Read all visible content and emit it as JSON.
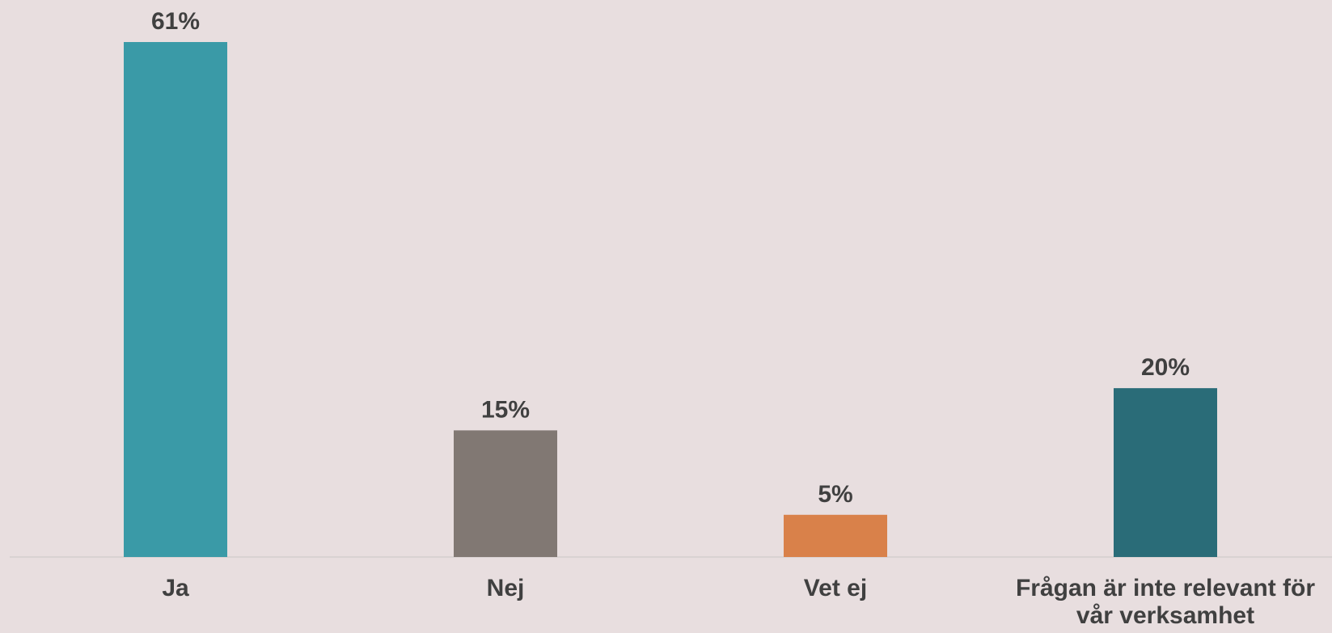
{
  "chart_data": {
    "type": "bar",
    "categories": [
      "Ja",
      "Nej",
      "Vet ej",
      "Frågan är inte relevant för vår verksamhet"
    ],
    "category_label_lines": [
      [
        "Ja"
      ],
      [
        "Nej"
      ],
      [
        "Vet ej"
      ],
      [
        "Frågan är inte relevant för",
        "vår verksamhet"
      ]
    ],
    "values": [
      61,
      15,
      5,
      20
    ],
    "value_labels": [
      "61%",
      "15%",
      "5%",
      "20%"
    ],
    "bar_colors": [
      "#3a9aa7",
      "#817873",
      "#d9814a",
      "#2a6c78"
    ],
    "ylim": [
      0,
      61
    ],
    "grid": false,
    "legend": "none",
    "title": "",
    "xlabel": "",
    "ylabel": ""
  },
  "colors": {
    "background": "#e8dedf",
    "axis": "#d9d2d2",
    "text": "#404040"
  }
}
